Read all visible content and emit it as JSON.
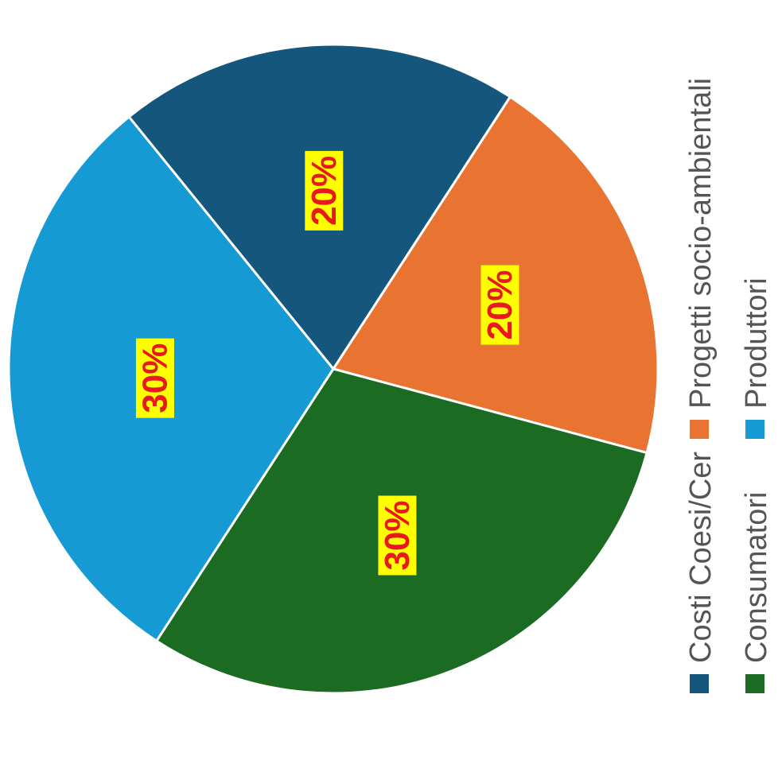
{
  "chart_data": {
    "type": "pie",
    "slices": [
      {
        "label": "Progetti socio-ambientali",
        "value": 20,
        "value_label": "20%",
        "color": "#E97432"
      },
      {
        "label": "Consumatori",
        "value": 30,
        "value_label": "30%",
        "color": "#1B6B22"
      },
      {
        "label": "Produttori",
        "value": 30,
        "value_label": "30%",
        "color": "#159AD4"
      },
      {
        "label": "Costi Coesi/Cer",
        "value": 20,
        "value_label": "20%",
        "color": "#14567C"
      }
    ],
    "legend": {
      "position": "right, rotated 90 degrees",
      "items": [
        {
          "label": "Costi Coesi/Cer",
          "color": "#14567C"
        },
        {
          "label": "Progetti socio-ambientali",
          "color": "#E97432"
        },
        {
          "label": "Consumatori",
          "color": "#1B6B22"
        },
        {
          "label": "Produttori",
          "color": "#159AD4"
        }
      ]
    },
    "data_label_style": {
      "text_color": "#E8191C",
      "background": "#FFFF00"
    },
    "orientation": "rotated 90 degrees clockwise"
  }
}
